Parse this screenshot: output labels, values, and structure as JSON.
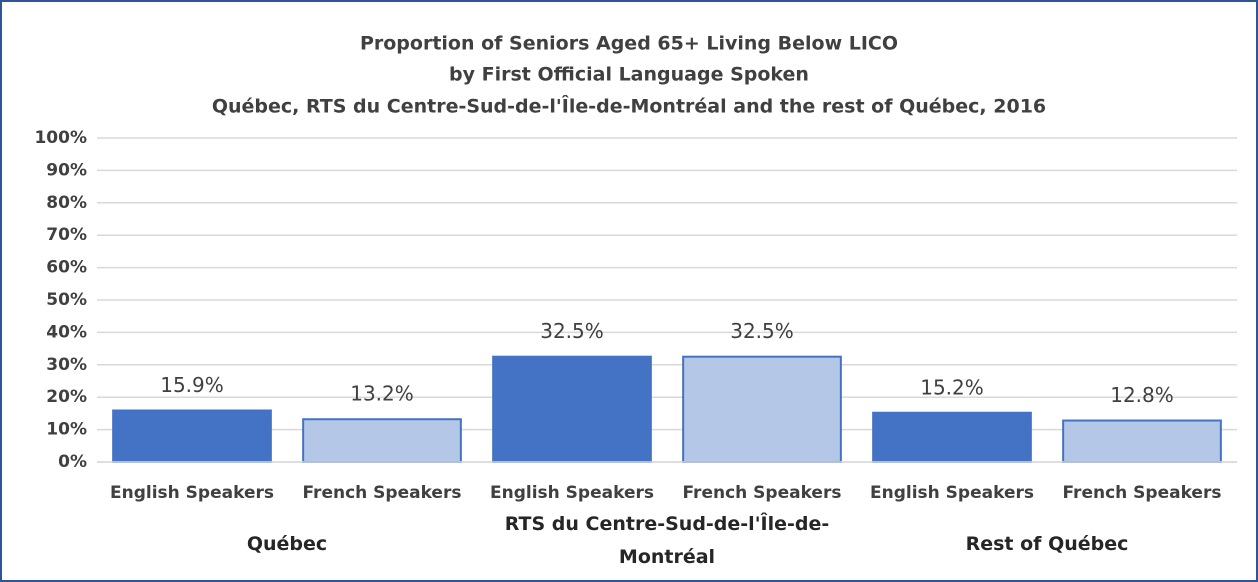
{
  "chart_data": {
    "type": "bar",
    "title": [
      "Proportion of Seniors Aged 65+ Living Below LICO",
      "by First Official Language Spoken",
      "Québec, RTS du Centre-Sud-de-l'Île-de-Montréal and the rest of Québec, 2016"
    ],
    "groups": [
      {
        "name": "Québec",
        "categories": [
          "English Speakers",
          "French Speakers"
        ],
        "values": [
          15.9,
          13.2
        ],
        "value_labels": [
          "15.9%",
          "13.2%"
        ]
      },
      {
        "name": "RTS du Centre-Sud-de-l'Île-de-Montréal",
        "categories": [
          "English Speakers",
          "French Speakers"
        ],
        "values": [
          32.5,
          32.5
        ],
        "value_labels": [
          "32.5%",
          "32.5%"
        ]
      },
      {
        "name": "Rest of Québec",
        "categories": [
          "English Speakers",
          "French Speakers"
        ],
        "values": [
          15.2,
          12.8
        ],
        "value_labels": [
          "15.2%",
          "12.8%"
        ]
      }
    ],
    "colors": [
      "#4472c4",
      "#b4c7e7"
    ],
    "ylim": [
      0,
      100
    ],
    "yticks": [
      {
        "value": 0,
        "label": "0%"
      },
      {
        "value": 10,
        "label": "10%"
      },
      {
        "value": 20,
        "label": "20%"
      },
      {
        "value": 30,
        "label": "30%"
      },
      {
        "value": 40,
        "label": "40%"
      },
      {
        "value": 50,
        "label": "50%"
      },
      {
        "value": 60,
        "label": "60%"
      },
      {
        "value": 70,
        "label": "70%"
      },
      {
        "value": 80,
        "label": "80%"
      },
      {
        "value": 90,
        "label": "90%"
      },
      {
        "value": 100,
        "label": "100%"
      }
    ],
    "grid": true
  }
}
